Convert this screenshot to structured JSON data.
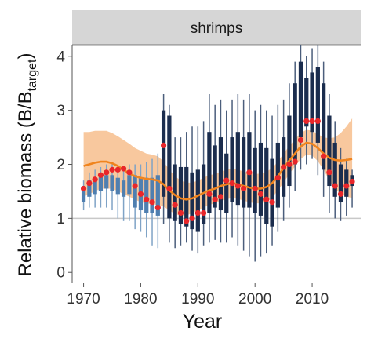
{
  "chart_data": {
    "type": "boxplot-timeseries",
    "facet_label": "shrimps",
    "xlabel": "Year",
    "ylabel_main": "Relative biomass (B/B",
    "ylabel_sub": "target",
    "ylabel_close": ")",
    "xlim": [
      1968,
      2018.5
    ],
    "ylim": [
      -0.2,
      4.2
    ],
    "x_ticks": [
      1970,
      1980,
      1990,
      2000,
      2010
    ],
    "y_ticks": [
      0,
      1,
      2,
      3,
      4
    ],
    "reference_line": 1,
    "colors": {
      "box_dark": "#1b2d4e",
      "box_light": "#4f7fb0",
      "whisker_dark": "#4b5e7c",
      "whisker_light": "#7fa3c6",
      "points": "#e8262a",
      "smooth_line": "#f0841e",
      "ribbon": "#f5b57e",
      "reference": "#c8c8c8",
      "strip_fill": "#d6d6d6"
    },
    "years": [
      1970,
      1971,
      1972,
      1973,
      1974,
      1975,
      1976,
      1977,
      1978,
      1979,
      1980,
      1981,
      1982,
      1983,
      1984,
      1985,
      1986,
      1987,
      1988,
      1989,
      1990,
      1991,
      1992,
      1993,
      1994,
      1995,
      1996,
      1997,
      1998,
      1999,
      2000,
      2001,
      2002,
      2003,
      2004,
      2005,
      2006,
      2007,
      2008,
      2009,
      2010,
      2011,
      2012,
      2013,
      2014,
      2015,
      2016,
      2017
    ],
    "box_q1": [
      1.3,
      1.4,
      1.45,
      1.5,
      1.55,
      1.5,
      1.45,
      1.4,
      1.45,
      1.2,
      1.15,
      1.1,
      1.1,
      1.05,
      1.4,
      1.0,
      0.95,
      0.9,
      0.85,
      0.8,
      0.75,
      0.9,
      1.1,
      1.2,
      1.15,
      1.1,
      1.3,
      1.25,
      1.2,
      1.2,
      1.1,
      1.05,
      0.9,
      0.85,
      1.2,
      1.4,
      1.6,
      2.0,
      2.5,
      2.7,
      2.6,
      2.4,
      1.9,
      1.6,
      1.4,
      1.3,
      1.4,
      1.6
    ],
    "box_q3": [
      1.6,
      1.7,
      1.75,
      1.8,
      1.8,
      1.8,
      1.75,
      1.7,
      1.8,
      1.8,
      1.75,
      1.75,
      1.75,
      1.8,
      3.0,
      2.9,
      2.0,
      1.95,
      1.95,
      1.85,
      1.9,
      2.0,
      2.6,
      2.35,
      2.5,
      2.2,
      2.5,
      2.6,
      2.5,
      2.6,
      2.3,
      2.4,
      2.3,
      2.1,
      2.4,
      2.5,
      2.9,
      3.5,
      3.9,
      3.6,
      3.7,
      3.8,
      3.5,
      2.9,
      2.4,
      2.0,
      1.9,
      1.8
    ],
    "whisker_lo": [
      1.15,
      1.2,
      1.2,
      1.2,
      1.2,
      1.15,
      1.0,
      0.95,
      0.95,
      0.8,
      0.75,
      0.65,
      0.5,
      0.45,
      0.9,
      0.55,
      0.45,
      0.5,
      0.55,
      0.4,
      0.35,
      0.5,
      0.55,
      0.6,
      0.55,
      0.55,
      0.65,
      0.5,
      0.4,
      0.3,
      0.2,
      0.3,
      0.35,
      0.5,
      0.75,
      0.95,
      1.2,
      1.5,
      1.9,
      2.0,
      2.1,
      1.8,
      1.4,
      1.1,
      1.0,
      0.95,
      1.05,
      1.2
    ],
    "whisker_hi": [
      1.7,
      1.85,
      1.9,
      1.95,
      2.0,
      2.0,
      1.95,
      1.9,
      2.0,
      2.0,
      2.0,
      2.05,
      2.1,
      2.2,
      3.3,
      3.1,
      2.5,
      2.5,
      2.6,
      2.7,
      2.7,
      2.8,
      3.3,
      3.1,
      3.2,
      3.0,
      3.2,
      3.3,
      3.2,
      3.3,
      3.0,
      3.1,
      3.0,
      2.9,
      3.1,
      3.2,
      3.5,
      3.9,
      4.2,
      4.0,
      4.15,
      4.2,
      3.9,
      3.3,
      2.8,
      2.3,
      2.1,
      1.9
    ],
    "box_light_years": [
      1970,
      1971,
      1972,
      1973,
      1974,
      1975,
      1976,
      1977,
      1978,
      1979,
      1980,
      1981,
      1982,
      1983
    ],
    "points": [
      1.55,
      1.65,
      1.72,
      1.8,
      1.85,
      1.9,
      1.9,
      1.92,
      1.85,
      1.6,
      1.45,
      1.35,
      1.3,
      1.2,
      2.35,
      1.55,
      1.25,
      1.1,
      0.95,
      1.0,
      1.1,
      1.1,
      1.45,
      1.35,
      1.4,
      1.7,
      1.65,
      1.6,
      1.55,
      1.85,
      1.55,
      1.45,
      1.35,
      1.3,
      1.75,
      1.95,
      2.0,
      2.05,
      2.45,
      2.8,
      2.8,
      2.8,
      2.15,
      1.85,
      1.6,
      1.45,
      1.6,
      1.68
    ],
    "smooth": [
      1.97,
      2.0,
      2.03,
      2.05,
      2.05,
      2.02,
      1.97,
      1.9,
      1.83,
      1.78,
      1.75,
      1.73,
      1.72,
      1.7,
      1.63,
      1.52,
      1.43,
      1.37,
      1.35,
      1.37,
      1.42,
      1.47,
      1.52,
      1.55,
      1.6,
      1.63,
      1.65,
      1.63,
      1.6,
      1.57,
      1.55,
      1.55,
      1.58,
      1.65,
      1.78,
      1.93,
      2.07,
      2.2,
      2.33,
      2.4,
      2.38,
      2.3,
      2.2,
      2.12,
      2.08,
      2.07,
      2.08,
      2.1
    ],
    "ribbon_lo": [
      1.4,
      1.45,
      1.5,
      1.55,
      1.55,
      1.55,
      1.5,
      1.45,
      1.4,
      1.35,
      1.3,
      1.28,
      1.26,
      1.25,
      1.22,
      1.15,
      1.08,
      1.05,
      1.05,
      1.1,
      1.15,
      1.2,
      1.25,
      1.28,
      1.32,
      1.35,
      1.38,
      1.36,
      1.33,
      1.3,
      1.28,
      1.28,
      1.3,
      1.38,
      1.52,
      1.66,
      1.82,
      1.96,
      2.1,
      2.18,
      2.16,
      2.06,
      1.9,
      1.7,
      1.55,
      1.45,
      1.4,
      1.38
    ],
    "ribbon_hi": [
      2.6,
      2.6,
      2.62,
      2.62,
      2.62,
      2.58,
      2.52,
      2.45,
      2.38,
      2.3,
      2.25,
      2.2,
      2.18,
      2.15,
      2.05,
      1.9,
      1.78,
      1.7,
      1.66,
      1.66,
      1.7,
      1.75,
      1.8,
      1.82,
      1.86,
      1.9,
      1.92,
      1.9,
      1.87,
      1.84,
      1.82,
      1.83,
      1.86,
      1.93,
      2.05,
      2.2,
      2.34,
      2.46,
      2.58,
      2.64,
      2.62,
      2.56,
      2.5,
      2.48,
      2.5,
      2.58,
      2.7,
      2.85
    ]
  }
}
